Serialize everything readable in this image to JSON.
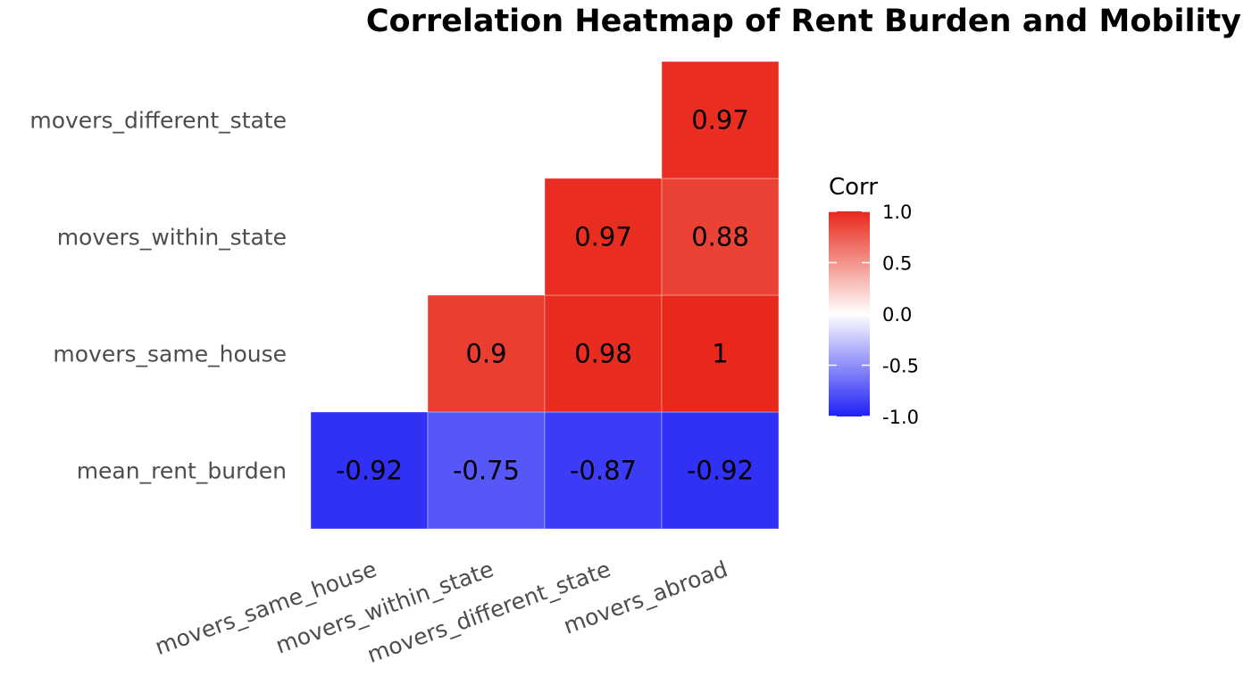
{
  "chart_data": {
    "type": "heatmap",
    "title": "Correlation Heatmap of Rent Burden and Mobility",
    "x_labels": [
      "movers_same_house",
      "movers_within_state",
      "movers_different_state",
      "movers_abroad"
    ],
    "y_labels": [
      "mean_rent_burden",
      "movers_same_house",
      "movers_within_state",
      "movers_different_state"
    ],
    "cells": [
      {
        "x": "movers_same_house",
        "y": "mean_rent_burden",
        "value": -0.92,
        "label": "-0.92"
      },
      {
        "x": "movers_within_state",
        "y": "mean_rent_burden",
        "value": -0.75,
        "label": "-0.75"
      },
      {
        "x": "movers_different_state",
        "y": "mean_rent_burden",
        "value": -0.87,
        "label": "-0.87"
      },
      {
        "x": "movers_abroad",
        "y": "mean_rent_burden",
        "value": -0.92,
        "label": "-0.92"
      },
      {
        "x": "movers_within_state",
        "y": "movers_same_house",
        "value": 0.9,
        "label": "0.9"
      },
      {
        "x": "movers_different_state",
        "y": "movers_same_house",
        "value": 0.98,
        "label": "0.98"
      },
      {
        "x": "movers_abroad",
        "y": "movers_same_house",
        "value": 1.0,
        "label": "1"
      },
      {
        "x": "movers_different_state",
        "y": "movers_within_state",
        "value": 0.97,
        "label": "0.97"
      },
      {
        "x": "movers_abroad",
        "y": "movers_within_state",
        "value": 0.88,
        "label": "0.88"
      },
      {
        "x": "movers_abroad",
        "y": "movers_different_state",
        "value": 0.97,
        "label": "0.97"
      }
    ],
    "legend": {
      "title": "Corr",
      "placement": "right",
      "range": [
        -1.0,
        1.0
      ],
      "ticks": [
        1.0,
        0.5,
        0.0,
        -0.5,
        -1.0
      ],
      "tick_labels": [
        "1.0",
        "0.5",
        "0.0",
        "-0.5",
        "-1.0"
      ]
    },
    "colors": {
      "low": "#1f1ff5",
      "mid": "#ffffff",
      "high": "#e8281a"
    },
    "grid": false
  }
}
